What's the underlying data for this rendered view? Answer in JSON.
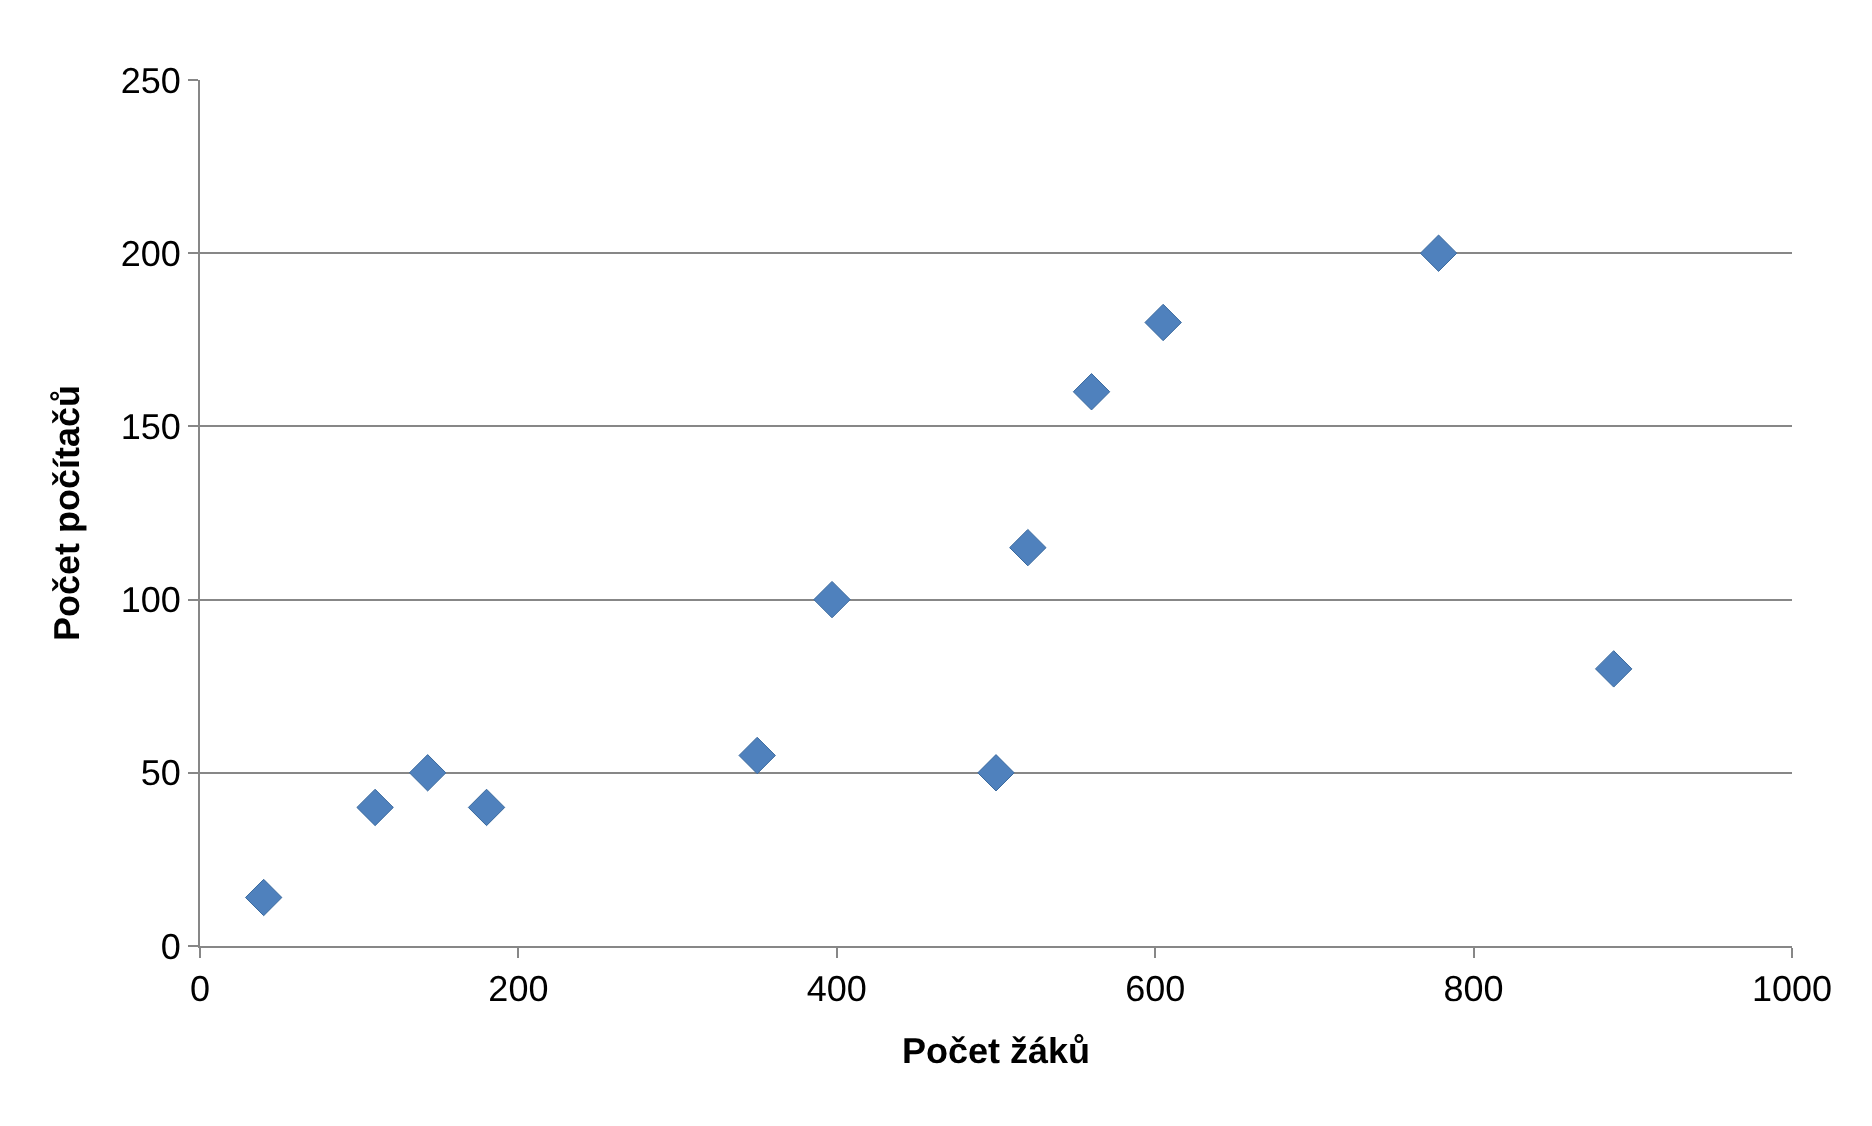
{
  "chart_data": {
    "type": "scatter",
    "xlabel": "Počet žáků",
    "ylabel": "Počet počítačů",
    "x": [
      40,
      110,
      143,
      180,
      350,
      397,
      500,
      520,
      560,
      605,
      778,
      888
    ],
    "series": [
      {
        "color": "#4f81bd",
        "values": [
          14,
          40,
          50,
          40,
          55,
          100,
          50,
          115,
          160,
          180,
          200,
          80
        ]
      }
    ],
    "xlim": [
      0,
      1000
    ],
    "xticks": [
      0,
      200,
      400,
      600,
      800,
      1000
    ],
    "ylim": [
      0,
      250
    ],
    "yticks": [
      0,
      50,
      100,
      150,
      200,
      250
    ],
    "grid": "y",
    "marker": "diamond"
  }
}
